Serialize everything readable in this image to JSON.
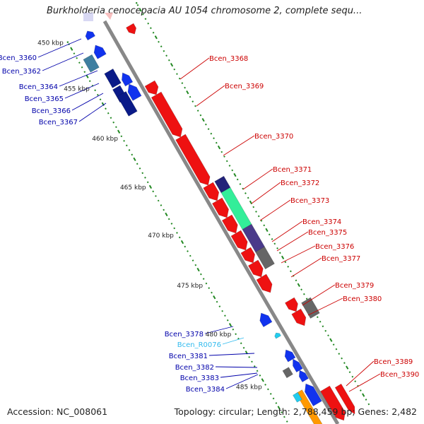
{
  "title": "Burkholderia cenocepacia AU 1054 chromosome 2, complete sequ...",
  "footer": {
    "accession": "Accession: NC_008061",
    "topology": "Topology: circular; Length: 2,788,459 bp; Genes: 2,482"
  },
  "colors": {
    "forward": "#ee1111",
    "reverse": "#1133ee",
    "reverse_dark": "#0a1a88",
    "navy": "#22227a",
    "gray": "#666666",
    "teal": "#3f7fa0",
    "mint": "#33ee99",
    "cyan": "#22ccee",
    "orange": "#ff9900",
    "purple": "#4a3a8a",
    "tick": "#228822",
    "backbone": "#888888",
    "label_forward": "#cc0000",
    "label_reverse": "#0000aa",
    "label_rna": "#33bbee"
  },
  "kbp_ticks": [
    {
      "label": "450 kbp",
      "kbp": 450
    },
    {
      "label": "455 kbp",
      "kbp": 455
    },
    {
      "label": "460 kbp",
      "kbp": 460
    },
    {
      "label": "465 kbp",
      "kbp": 465
    },
    {
      "label": "470 kbp",
      "kbp": 470
    },
    {
      "label": "475 kbp",
      "kbp": 475
    },
    {
      "label": "480 kbp",
      "kbp": 480
    },
    {
      "label": "485 kbp",
      "kbp": 485
    }
  ],
  "reverse_labels": [
    "Bcen_3360",
    "Bcen_3362",
    "Bcen_3364",
    "Bcen_3365",
    "Bcen_3366",
    "Bcen_3367",
    "Bcen_3378",
    "Bcen_R0076",
    "Bcen_3381",
    "Bcen_3382",
    "Bcen_3383",
    "Bcen_3384"
  ],
  "forward_labels": [
    "Bcen_3368",
    "Bcen_3369",
    "Bcen_3370",
    "Bcen_3371",
    "Bcen_3372",
    "Bcen_3373",
    "Bcen_3374",
    "Bcen_3375",
    "Bcen_3376",
    "Bcen_3377",
    "Bcen_3379",
    "Bcen_3380",
    "Bcen_3389",
    "Bcen_3390"
  ]
}
